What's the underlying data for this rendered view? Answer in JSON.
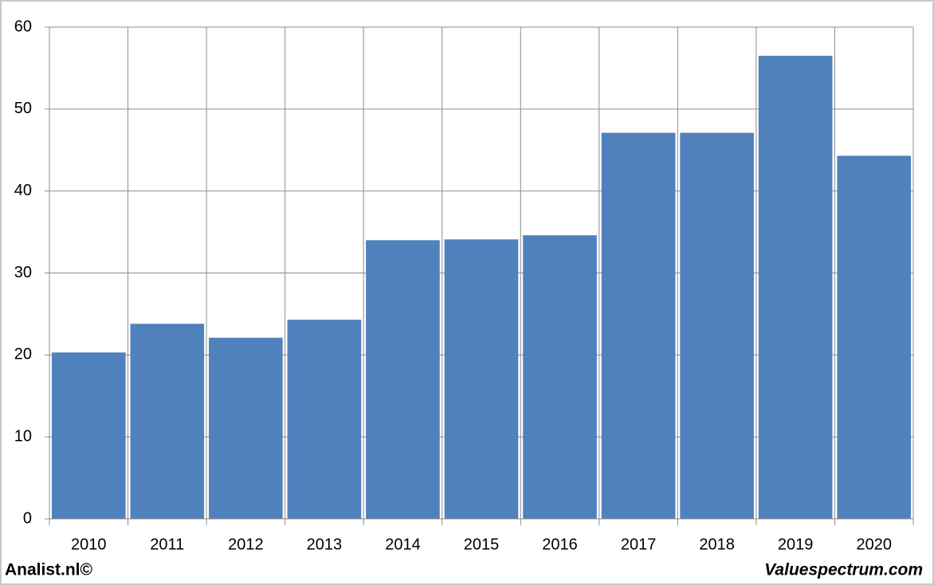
{
  "chart_data": {
    "type": "bar",
    "categories": [
      "2010",
      "2011",
      "2012",
      "2013",
      "2014",
      "2015",
      "2016",
      "2017",
      "2018",
      "2019",
      "2020"
    ],
    "values": [
      20.3,
      23.8,
      22.1,
      24.3,
      34.0,
      34.1,
      34.6,
      47.1,
      47.1,
      56.5,
      44.3
    ],
    "color": "#4f81bd",
    "ylim": [
      0,
      60
    ],
    "yticks": [
      0,
      10,
      20,
      30,
      40,
      50,
      60
    ],
    "grid": true,
    "annotations": [
      "Analist.nl©",
      "Valuespectrum.com"
    ]
  }
}
